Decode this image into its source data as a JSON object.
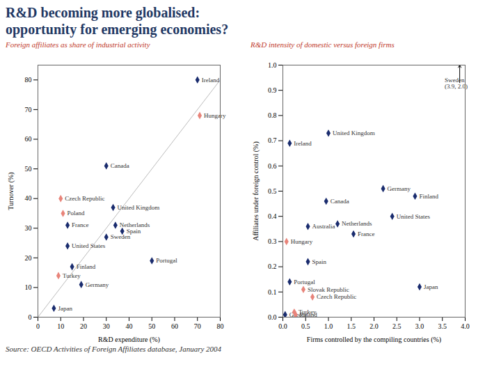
{
  "chart_data": [
    {
      "type": "scatter",
      "title": "R&D becoming more globalised:\nopportunity for emerging economies?",
      "title_color": "#1f3864",
      "subtitle": "Foreign affiliates as share of industrial activity",
      "subtitle_color": "#c0392b",
      "source": "Source:  OECD Activities of Foreign Affiliates database, January 2004",
      "xlabel": "R&D expenditure (%)",
      "ylabel": "Turnover (%)",
      "xlim": [
        0,
        80
      ],
      "ylim": [
        0,
        85
      ],
      "xticks": [
        0,
        10,
        20,
        30,
        40,
        50,
        60,
        70,
        80
      ],
      "yticks": [
        0,
        10,
        20,
        30,
        40,
        50,
        60,
        70,
        80
      ],
      "series": [
        {
          "type": "line",
          "color": "#bbbbbb",
          "x": [
            0,
            80
          ],
          "values": [
            0,
            80
          ]
        },
        {
          "color": "#1a2c6e",
          "marker": "diamond",
          "x": [
            70,
            30,
            33,
            13,
            34,
            37,
            30,
            13,
            15,
            19,
            7,
            50
          ],
          "values": [
            80,
            51,
            37,
            31,
            31,
            29,
            27,
            24,
            17,
            11,
            3,
            19
          ],
          "labels": [
            "Ireland",
            "Canada",
            "United Kingdom",
            "France",
            "Netherlands",
            "Spain",
            "Sweden",
            "United States",
            "Finland",
            "Germany",
            "Japan",
            "Portugal"
          ]
        },
        {
          "color": "#e8847a",
          "marker": "diamond",
          "x": [
            71,
            10,
            11,
            9
          ],
          "values": [
            68,
            40,
            35,
            14
          ],
          "labels": [
            "Hungary",
            "Czech Republic",
            "Poland",
            "Turkey"
          ]
        }
      ]
    },
    {
      "type": "scatter",
      "subtitle": "R&D intensity of domestic versus foreign firms",
      "subtitle_color": "#c0392b",
      "xlabel": "Firms controlled by the compiling countries (%)",
      "ylabel": "Affiliates under foreign control (%)",
      "xlim": [
        0.0,
        4.0
      ],
      "ylim": [
        0.0,
        1.0
      ],
      "xticks": [
        {
          "value": 0,
          "label": "0.0"
        },
        0.5,
        {
          "value": 1,
          "label": "1.0"
        },
        1.5,
        {
          "value": 2,
          "label": "2.0"
        },
        2.5,
        {
          "value": 3,
          "label": "3.0"
        },
        3.5,
        {
          "value": 4,
          "label": "4.0"
        }
      ],
      "yticks": [
        {
          "value": 0,
          "label": "0.0"
        },
        0.1,
        0.2,
        0.3,
        0.4,
        0.5,
        0.6,
        0.7,
        0.8,
        0.9,
        {
          "value": 1,
          "label": "1.0"
        }
      ],
      "series": [
        {
          "color": "#1a2c6e",
          "marker": "diamond",
          "x": [
            0.15,
            1.0,
            0.95,
            2.2,
            2.9,
            1.2,
            1.55,
            0.55,
            2.4,
            0.55,
            0.15,
            3.0,
            0.05
          ],
          "values": [
            0.69,
            0.73,
            0.46,
            0.51,
            0.48,
            0.37,
            0.33,
            0.36,
            0.4,
            0.22,
            0.14,
            0.12,
            0.01
          ],
          "labels": [
            "Ireland",
            "United Kingdom",
            "Canada",
            "Germany",
            "Finland",
            "Netherlands",
            "France",
            "Australia",
            "United States",
            "Spain",
            "Portugal",
            "Japan",
            "Greece"
          ]
        },
        {
          "color": "#e8847a",
          "marker": "diamond",
          "x": [
            0.08,
            0.45,
            0.65,
            0.25,
            0.28
          ],
          "values": [
            0.3,
            0.11,
            0.08,
            0.02,
            0.01
          ],
          "labels": [
            "Hungary",
            "Slovak Republic",
            "Czech Republic",
            "Turkey",
            "Poland"
          ]
        }
      ],
      "annotations": [
        {
          "text": "Sweden\n(3.9, 2.0)",
          "x": 3.55,
          "y": 0.95,
          "arrow_x": 3.88,
          "arrow_start_y": 0.93,
          "arrow_y": 1.0
        }
      ]
    }
  ]
}
